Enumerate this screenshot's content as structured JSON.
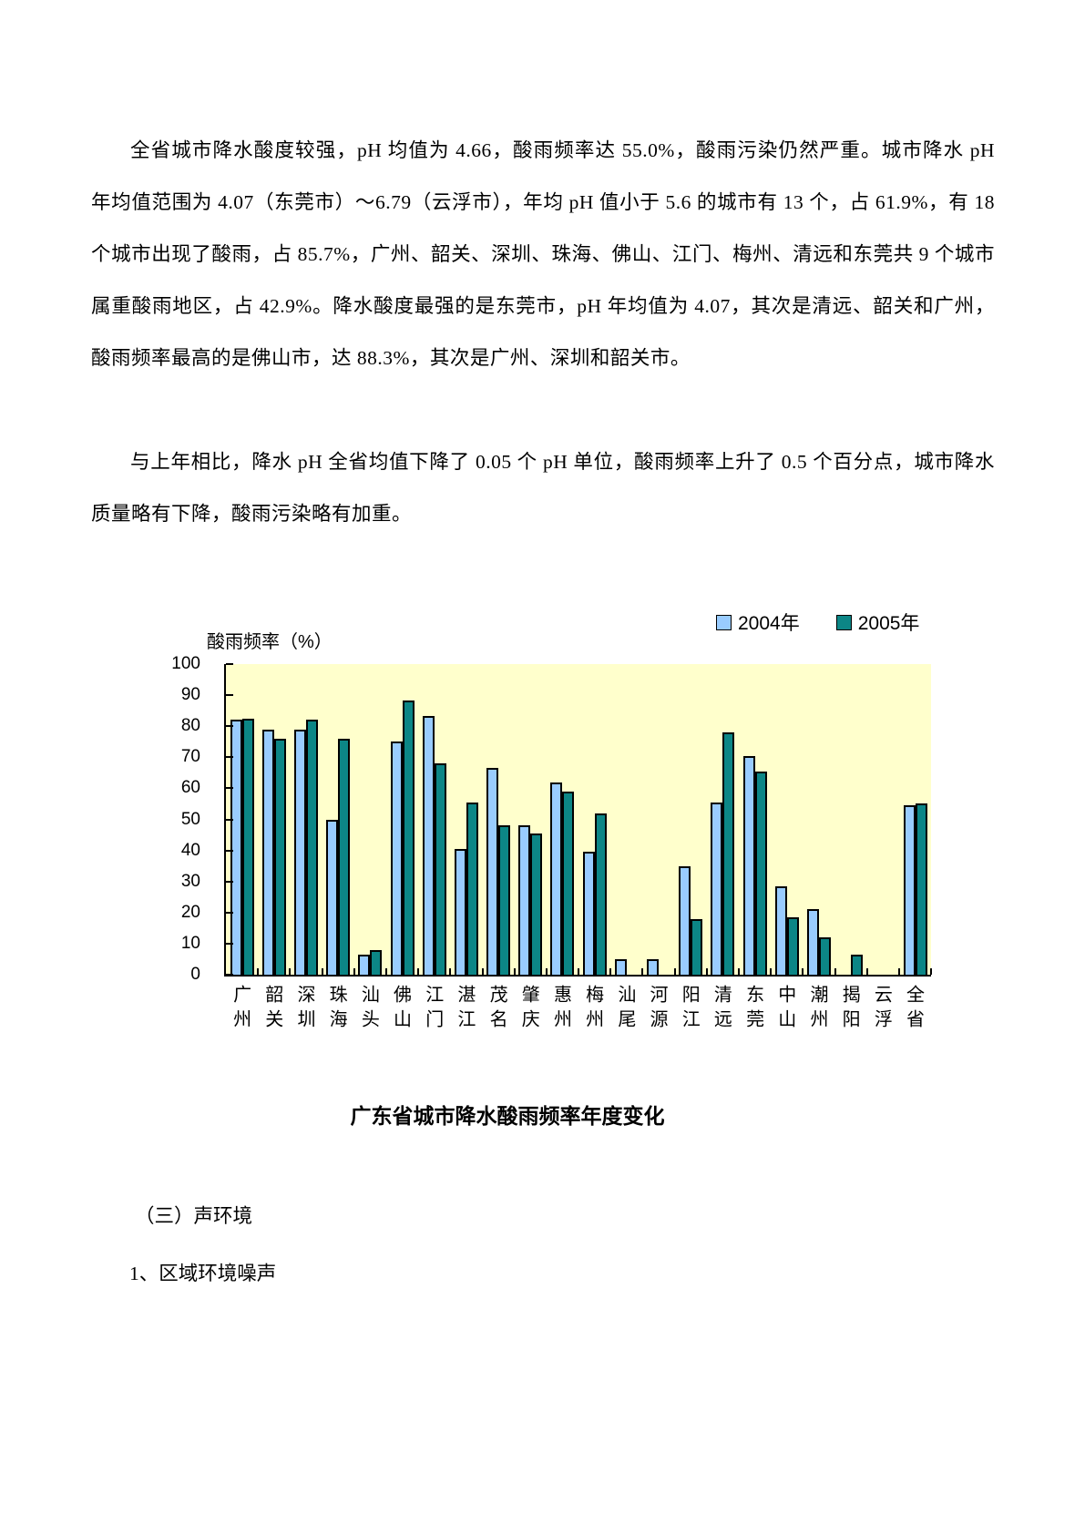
{
  "document": {
    "paragraphs": [
      "全省城市降水酸度较强，pH 均值为 4.66，酸雨频率达 55.0%，酸雨污染仍然严重。城市降水 pH 年均值范围为 4.07（东莞市）～6.79（云浮市），年均 pH 值小于 5.6 的城市有 13 个，占 61.9%，有 18 个城市出现了酸雨，占 85.7%，广州、韶关、深圳、珠海、佛山、江门、梅州、清远和东莞共 9 个城市属重酸雨地区，占 42.9%。降水酸度最强的是东莞市，pH 年均值为 4.07，其次是清远、韶关和广州，酸雨频率最高的是佛山市，达 88.3%，其次是广州、深圳和韶关市。",
      "与上年相比，降水 pH 全省均值下降了 0.05 个 pH 单位，酸雨频率上升了 0.5 个百分点，城市降水质量略有下降，酸雨污染略有加重。"
    ],
    "figure_caption": "广东省城市降水酸雨频率年度变化",
    "section_heading": "（三）声环境",
    "subsection_heading": "1、区域环境噪声"
  },
  "chart_data": {
    "type": "bar",
    "title": "广东省城市降水酸雨频率年度变化",
    "ylabel": "酸雨频率（%）",
    "xlabel": "",
    "ylim": [
      0,
      100
    ],
    "ytick_step": 10,
    "grid": false,
    "legend_position": "top-right",
    "plot_bg": "#FFFFCC",
    "bar_border_color": "#000000",
    "categories": [
      "广州",
      "韶关",
      "深圳",
      "珠海",
      "汕头",
      "佛山",
      "江门",
      "湛江",
      "茂名",
      "肇庆",
      "惠州",
      "梅州",
      "汕尾",
      "河源",
      "阳江",
      "清远",
      "东莞",
      "中山",
      "潮州",
      "揭阳",
      "云浮",
      "全省"
    ],
    "series": [
      {
        "name": "2004年",
        "color": "#99CCFF",
        "values": [
          82,
          79,
          79,
          50,
          6.5,
          75,
          83.3,
          40.5,
          66.5,
          48,
          62,
          39.5,
          5,
          5,
          35,
          55.5,
          70.5,
          28.5,
          21,
          0,
          0,
          54.5
        ]
      },
      {
        "name": "2005年",
        "color": "#0C8686",
        "values": [
          82.3,
          76,
          82,
          76,
          8,
          88.3,
          68,
          55.5,
          48,
          45.5,
          59,
          52,
          0,
          0,
          18,
          78,
          65.5,
          18.5,
          12,
          6.5,
          0,
          55
        ]
      }
    ]
  }
}
